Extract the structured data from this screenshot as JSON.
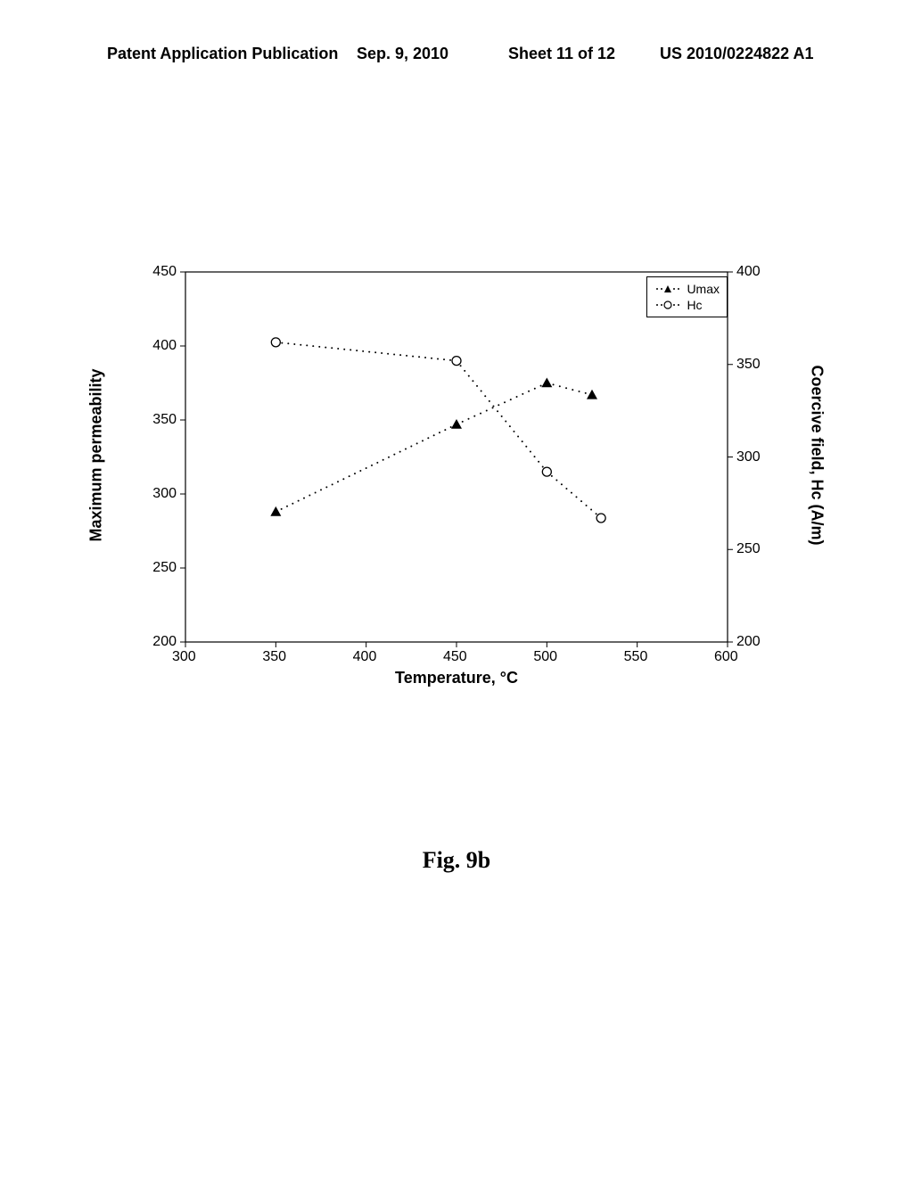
{
  "header": {
    "left": "Patent Application Publication",
    "date": "Sep. 9, 2010",
    "sheet": "Sheet 11 of 12",
    "pubno": "US 2010/0224822 A1"
  },
  "caption": "Fig. 9b",
  "chart": {
    "type": "scatter-dual-axis",
    "xlabel": "Temperature, °C",
    "ylabel_left": "Maximum permeability",
    "ylabel_right": "Coercive field, Hᴄ (A/m)",
    "xlim": [
      300,
      600
    ],
    "ylim_left": [
      200,
      450
    ],
    "ylim_right": [
      200,
      400
    ],
    "xticks": [
      300,
      350,
      400,
      450,
      500,
      550,
      600
    ],
    "yticks_left": [
      200,
      250,
      300,
      350,
      400,
      450
    ],
    "yticks_right": [
      200,
      250,
      300,
      350,
      400
    ],
    "background_color": "#ffffff",
    "border_color": "#000000",
    "line_style": "dotted",
    "dot_color": "#000000",
    "marker_size": 6,
    "legend": {
      "position": "top-right",
      "items": [
        {
          "marker": "triangle-filled",
          "label": "Umax"
        },
        {
          "marker": "circle-open",
          "label": "Hc"
        }
      ]
    },
    "series": [
      {
        "name": "Umax",
        "axis": "left",
        "marker": "triangle-filled",
        "marker_color": "#000000",
        "x": [
          350,
          450,
          500,
          525
        ],
        "y": [
          288,
          347,
          375,
          367
        ]
      },
      {
        "name": "Hc",
        "axis": "right",
        "marker": "circle-open",
        "marker_color": "#000000",
        "x": [
          350,
          450,
          500,
          530
        ],
        "y": [
          362,
          352,
          292,
          267
        ]
      }
    ]
  }
}
